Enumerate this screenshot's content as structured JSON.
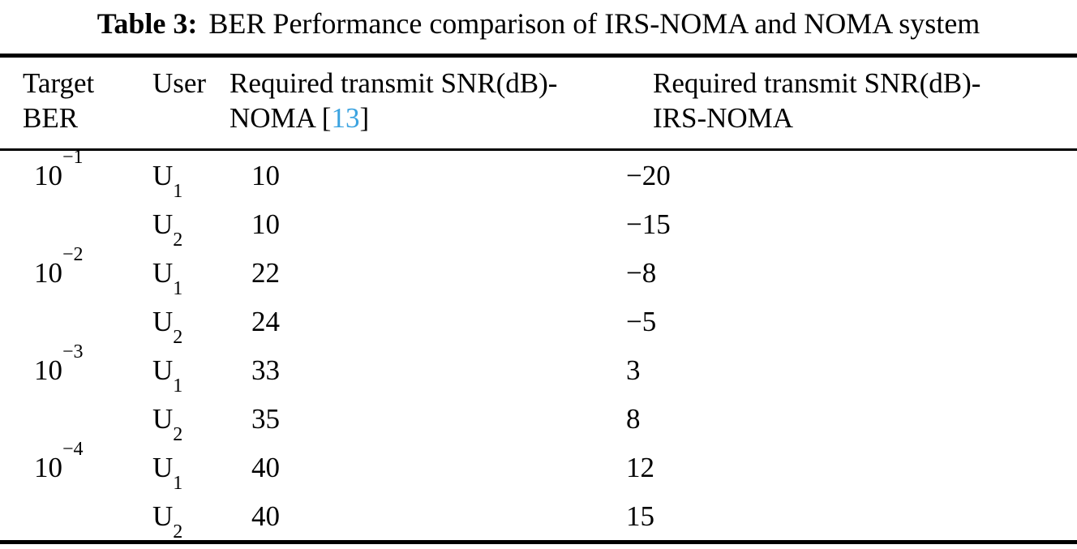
{
  "colors": {
    "citation_link": "#3BA3E0",
    "text": "#000000",
    "background": "#ffffff"
  },
  "caption": {
    "label": "Table 3:",
    "text": "BER Performance comparison of IRS-NOMA and NOMA system"
  },
  "table": {
    "header": {
      "col1_line1": "Target",
      "col1_line2": "BER",
      "col2": "User",
      "col3_line1": "Required transmit SNR(dB)-",
      "col3_line2_prefix": "NOMA ",
      "col3_citation_open": "[",
      "col3_citation": "13",
      "col3_citation_close": "]",
      "col4_line1": "Required transmit SNR(dB)-",
      "col4_line2": "IRS-NOMA"
    },
    "rows": [
      {
        "ber_base": "10",
        "ber_exp": "−1",
        "user": "U",
        "user_sub": "1",
        "noma": "10",
        "irs": "−20"
      },
      {
        "ber_base": "",
        "ber_exp": "",
        "user": "U",
        "user_sub": "2",
        "noma": "10",
        "irs": "−15"
      },
      {
        "ber_base": "10",
        "ber_exp": "−2",
        "user": "U",
        "user_sub": "1",
        "noma": "22",
        "irs": "−8"
      },
      {
        "ber_base": "",
        "ber_exp": "",
        "user": "U",
        "user_sub": "2",
        "noma": "24",
        "irs": "−5"
      },
      {
        "ber_base": "10",
        "ber_exp": "−3",
        "user": "U",
        "user_sub": "1",
        "noma": "33",
        "irs": "3"
      },
      {
        "ber_base": "",
        "ber_exp": "",
        "user": "U",
        "user_sub": "2",
        "noma": "35",
        "irs": "8"
      },
      {
        "ber_base": "10",
        "ber_exp": "−4",
        "user": "U",
        "user_sub": "1",
        "noma": "40",
        "irs": "12"
      },
      {
        "ber_base": "",
        "ber_exp": "",
        "user": "U",
        "user_sub": "2",
        "noma": "40",
        "irs": "15"
      }
    ]
  },
  "chart_data": {
    "type": "table",
    "title": "Table 3: BER Performance comparison of IRS-NOMA and NOMA system",
    "columns": [
      "Target BER",
      "User",
      "Required transmit SNR(dB)-NOMA [13]",
      "Required transmit SNR(dB)-IRS-NOMA"
    ],
    "rows": [
      [
        "10^-1",
        "U1",
        10,
        -20
      ],
      [
        "10^-1",
        "U2",
        10,
        -15
      ],
      [
        "10^-2",
        "U1",
        22,
        -8
      ],
      [
        "10^-2",
        "U2",
        24,
        -5
      ],
      [
        "10^-3",
        "U1",
        33,
        3
      ],
      [
        "10^-3",
        "U2",
        35,
        8
      ],
      [
        "10^-4",
        "U1",
        40,
        12
      ],
      [
        "10^-4",
        "U2",
        40,
        15
      ]
    ]
  }
}
